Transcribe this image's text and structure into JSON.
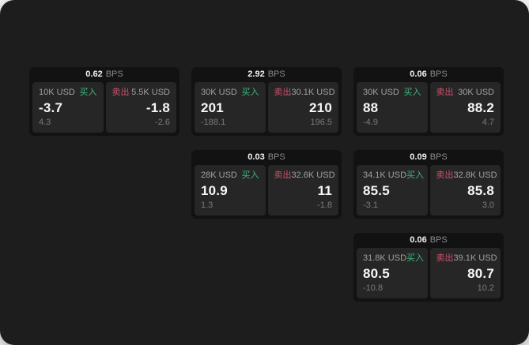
{
  "labels": {
    "bps": "BPS",
    "buy": "买入",
    "sell": "卖出"
  },
  "colors": {
    "buy": "#3eb880",
    "sell": "#cb5268",
    "surface": "#1d1d1d",
    "card": "#121213",
    "panel": "#262626"
  },
  "cards": [
    {
      "bps": "0.62",
      "buy": {
        "amount": "10K USD",
        "value": "-3.7",
        "sub": "4.3"
      },
      "sell": {
        "amount": "5.5K USD",
        "value": "-1.8",
        "sub": "-2.6"
      }
    },
    {
      "bps": "2.92",
      "buy": {
        "amount": "30K USD",
        "value": "201",
        "sub": "-188.1"
      },
      "sell": {
        "amount": "30.1K USD",
        "value": "210",
        "sub": "196.5"
      }
    },
    {
      "bps": "0.06",
      "buy": {
        "amount": "30K USD",
        "value": "88",
        "sub": "-4.9"
      },
      "sell": {
        "amount": "30K USD",
        "value": "88.2",
        "sub": "4.7"
      }
    },
    {
      "bps": "0.03",
      "buy": {
        "amount": "28K USD",
        "value": "10.9",
        "sub": "1.3"
      },
      "sell": {
        "amount": "32.6K USD",
        "value": "11",
        "sub": "-1.8"
      }
    },
    {
      "bps": "0.09",
      "buy": {
        "amount": "34.1K USD",
        "value": "85.5",
        "sub": "-3.1"
      },
      "sell": {
        "amount": "32.8K USD",
        "value": "85.8",
        "sub": "3.0"
      }
    },
    {
      "bps": "0.06",
      "buy": {
        "amount": "31.8K USD",
        "value": "80.5",
        "sub": "-10.8"
      },
      "sell": {
        "amount": "39.1K USD",
        "value": "80.7",
        "sub": "10.2"
      }
    }
  ]
}
